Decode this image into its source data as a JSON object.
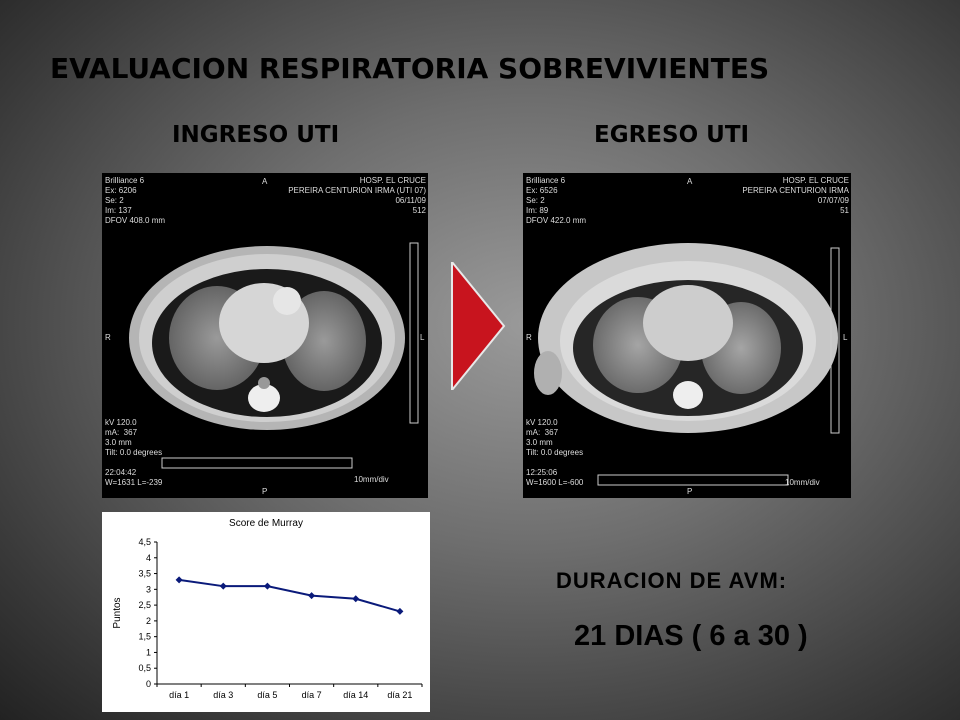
{
  "slide": {
    "title": "EVALUACION  RESPIRATORIA SOBREVIVIENTES",
    "left_heading": "INGRESO  UTI",
    "right_heading": "EGRESO  UTI",
    "avm_label": "DURACION  DE  AVM:",
    "avm_value": "21 DIAS ( 6 a 30 )",
    "arrow_color": "#c8141e"
  },
  "ct_left": {
    "tl": [
      "Brilliance 6",
      "Ex: 6206",
      "Se: 2",
      "Im: 137",
      "DFOV 408.0 mm"
    ],
    "tr": [
      "HOSP. EL CRUCE",
      "PEREIRA CENTURION IRMA (UTI 07)",
      "06/11/09",
      "512"
    ],
    "bl": [
      "kV 120.0",
      "mA:  367",
      "3.0 mm",
      "Tilt: 0.0 degrees",
      "",
      "22:04:42",
      "W=1631 L=-239"
    ],
    "top": "A",
    "bottom": "P",
    "left": "R",
    "right": "L",
    "scale": "10mm/div"
  },
  "ct_right": {
    "tl": [
      "Brilliance 6",
      "Ex: 6526",
      "Se: 2",
      "Im: 89",
      "DFOV 422.0 mm"
    ],
    "tr": [
      "HOSP. EL CRUCE",
      "PEREIRA CENTURION IRMA",
      "07/07/09",
      "51"
    ],
    "bl": [
      "kV 120.0",
      "mA:  367",
      "3.0 mm",
      "Tilt: 0.0 degrees",
      "",
      "12:25:06",
      "W=1600 L=-600"
    ],
    "top": "A",
    "bottom": "P",
    "left": "R",
    "right": "L",
    "scale": "10mm/div"
  },
  "chart_data": {
    "type": "line",
    "title": "Score de Murray",
    "ylabel": "Puntos",
    "xlabel": "",
    "categories": [
      "día 1",
      "día 3",
      "día 5",
      "día 7",
      "día 14",
      "día 21"
    ],
    "values": [
      3.3,
      3.1,
      3.1,
      2.8,
      2.7,
      2.3
    ],
    "ylim": [
      0,
      4.5
    ],
    "yticks": [
      "0",
      "0,5",
      "1",
      "1,5",
      "2",
      "2,5",
      "3",
      "3,5",
      "4",
      "4,5"
    ],
    "line_color": "#0a1a7a",
    "grid": false,
    "legend": "none"
  }
}
